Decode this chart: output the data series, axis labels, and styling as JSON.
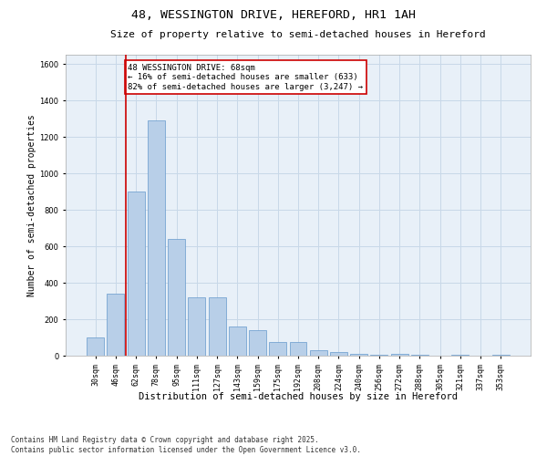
{
  "title": "48, WESSINGTON DRIVE, HEREFORD, HR1 1AH",
  "subtitle": "Size of property relative to semi-detached houses in Hereford",
  "xlabel": "Distribution of semi-detached houses by size in Hereford",
  "ylabel": "Number of semi-detached properties",
  "categories": [
    "30sqm",
    "46sqm",
    "62sqm",
    "78sqm",
    "95sqm",
    "111sqm",
    "127sqm",
    "143sqm",
    "159sqm",
    "175sqm",
    "192sqm",
    "208sqm",
    "224sqm",
    "240sqm",
    "256sqm",
    "272sqm",
    "288sqm",
    "305sqm",
    "321sqm",
    "337sqm",
    "353sqm"
  ],
  "values": [
    100,
    340,
    900,
    1290,
    640,
    320,
    320,
    160,
    140,
    75,
    75,
    28,
    20,
    12,
    5,
    12,
    5,
    0,
    3,
    0,
    3
  ],
  "bar_color": "#b8cfe8",
  "bar_edge_color": "#6699cc",
  "vline_x": 1.5,
  "vline_color": "#cc0000",
  "annotation_text": "48 WESSINGTON DRIVE: 68sqm\n← 16% of semi-detached houses are smaller (633)\n82% of semi-detached houses are larger (3,247) →",
  "annotation_box_color": "#ffffff",
  "annotation_box_edge": "#cc0000",
  "ylim": [
    0,
    1650
  ],
  "yticks": [
    0,
    200,
    400,
    600,
    800,
    1000,
    1200,
    1400,
    1600
  ],
  "grid_color": "#c8d8e8",
  "background_color": "#e8f0f8",
  "footer": "Contains HM Land Registry data © Crown copyright and database right 2025.\nContains public sector information licensed under the Open Government Licence v3.0.",
  "title_fontsize": 9.5,
  "subtitle_fontsize": 8,
  "xlabel_fontsize": 7.5,
  "ylabel_fontsize": 7,
  "tick_fontsize": 6,
  "annotation_fontsize": 6.5,
  "footer_fontsize": 5.5
}
